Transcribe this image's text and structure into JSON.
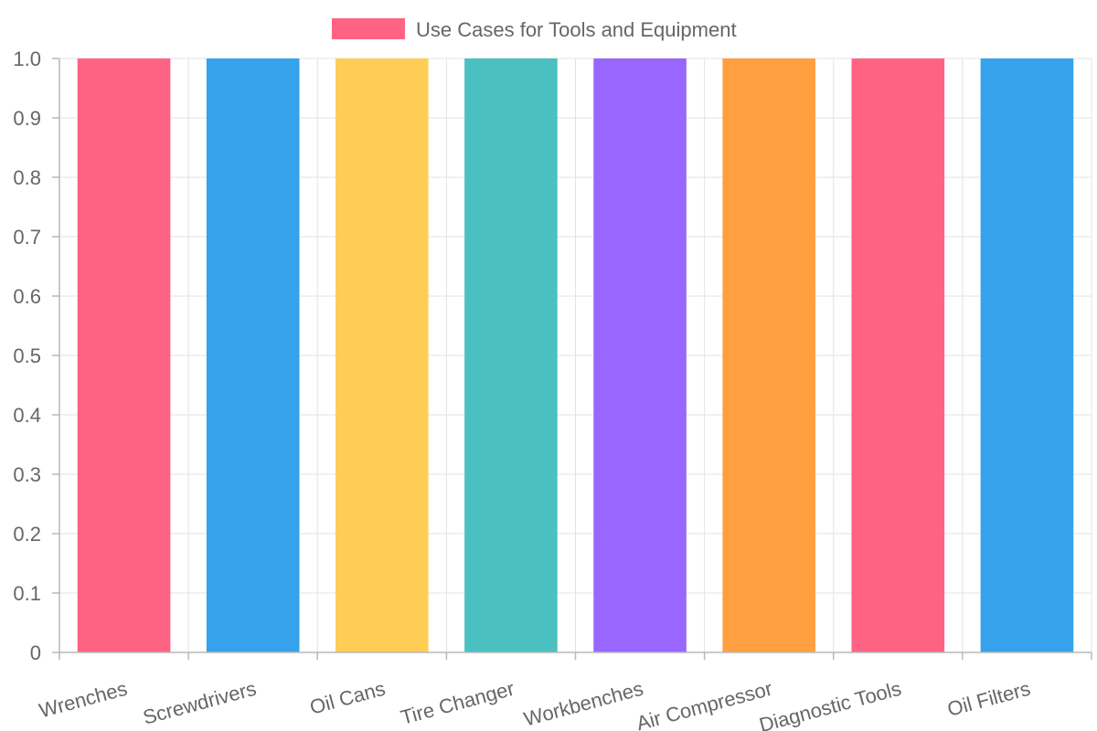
{
  "chart_data": {
    "type": "bar",
    "title": "",
    "xlabel": "",
    "ylabel": "",
    "categories": [
      "Wrenches",
      "Screwdrivers",
      "Oil Cans",
      "Tire Changer",
      "Workbenches",
      "Air Compressor",
      "Diagnostic Tools",
      "Oil Filters"
    ],
    "series": [
      {
        "name": "Use Cases for Tools and Equipment",
        "values": [
          1,
          1,
          1,
          1,
          1,
          1,
          1,
          1
        ],
        "colors": [
          "#ff6384",
          "#36a2eb",
          "#ffcd56",
          "#4bc0c0",
          "#9966ff",
          "#ff9f40",
          "#ff6384",
          "#36a2eb"
        ]
      }
    ],
    "ylim": [
      0,
      1
    ],
    "yticks": [
      "0",
      "0.1",
      "0.2",
      "0.3",
      "0.4",
      "0.5",
      "0.6",
      "0.7",
      "0.8",
      "0.9",
      "1.0"
    ],
    "legend": {
      "position": "top",
      "label": "Use Cases for Tools and Equipment",
      "color": "#ff6384"
    },
    "grid": true
  }
}
